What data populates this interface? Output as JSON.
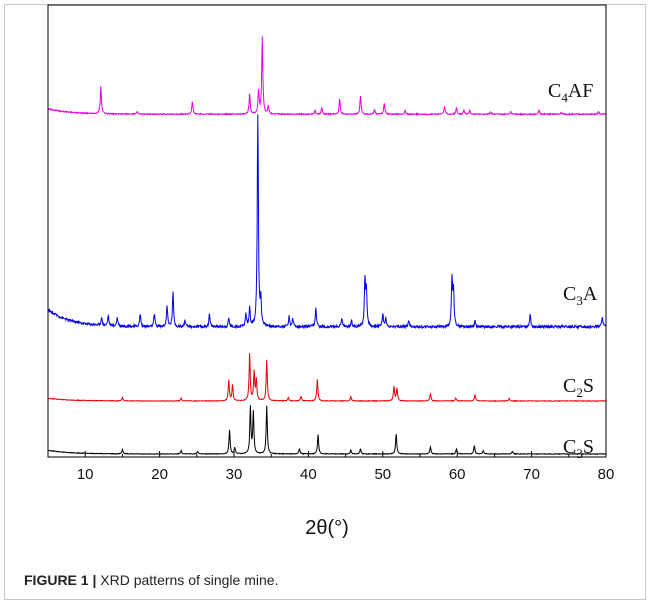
{
  "figure": {
    "caption_label": "FIGURE 1 |",
    "caption_text": " XRD patterns of single mine."
  },
  "chart_data": {
    "type": "line",
    "xlabel": "2θ(°)",
    "ylabel": "",
    "xlim": [
      5,
      80
    ],
    "xticks": [
      10,
      20,
      30,
      40,
      50,
      60,
      70,
      80
    ],
    "yaxis_ticks": false,
    "grid": false,
    "series": [
      {
        "name": "C3S",
        "label_main": "C",
        "label_sub": "3",
        "label_rest": "S",
        "color": "#000000",
        "baseline_start": 0.09,
        "baseline_end": 0.02,
        "peaks": [
          [
            15.0,
            0.08
          ],
          [
            22.9,
            0.06
          ],
          [
            25.1,
            0.05
          ],
          [
            29.4,
            0.46
          ],
          [
            30.1,
            0.12
          ],
          [
            32.2,
            0.9
          ],
          [
            32.6,
            0.8
          ],
          [
            34.4,
            0.92
          ],
          [
            38.8,
            0.1
          ],
          [
            41.3,
            0.38
          ],
          [
            45.7,
            0.07
          ],
          [
            47.0,
            0.1
          ],
          [
            51.8,
            0.38
          ],
          [
            56.4,
            0.14
          ],
          [
            59.9,
            0.1
          ],
          [
            62.3,
            0.16
          ],
          [
            63.5,
            0.06
          ],
          [
            67.4,
            0.05
          ]
        ]
      },
      {
        "name": "C2S",
        "label_main": "C",
        "label_sub": "2",
        "label_rest": "S",
        "color": "#e8000a",
        "baseline_start": 0.07,
        "baseline_end": 0.02,
        "peaks": [
          [
            15.0,
            0.06
          ],
          [
            22.9,
            0.05
          ],
          [
            29.3,
            0.4
          ],
          [
            29.8,
            0.3
          ],
          [
            32.1,
            0.9
          ],
          [
            32.7,
            0.55
          ],
          [
            33.0,
            0.4
          ],
          [
            34.4,
            0.78
          ],
          [
            37.3,
            0.06
          ],
          [
            39.0,
            0.09
          ],
          [
            41.2,
            0.42
          ],
          [
            45.7,
            0.08
          ],
          [
            51.5,
            0.28
          ],
          [
            51.9,
            0.24
          ],
          [
            56.4,
            0.14
          ],
          [
            59.8,
            0.06
          ],
          [
            62.4,
            0.12
          ],
          [
            67.0,
            0.05
          ]
        ]
      },
      {
        "name": "C3A",
        "label_main": "C",
        "label_sub": "3",
        "label_rest": "A",
        "color": "#0000e6",
        "baseline_start": 0.1,
        "baseline_end": 0.02,
        "peaks": [
          [
            12.2,
            0.04
          ],
          [
            13.1,
            0.05
          ],
          [
            14.3,
            0.04
          ],
          [
            17.4,
            0.06
          ],
          [
            19.3,
            0.06
          ],
          [
            21.0,
            0.1
          ],
          [
            21.8,
            0.16
          ],
          [
            23.4,
            0.03
          ],
          [
            26.7,
            0.06
          ],
          [
            29.3,
            0.04
          ],
          [
            31.6,
            0.06
          ],
          [
            32.1,
            0.09
          ],
          [
            33.2,
            1.0
          ],
          [
            33.6,
            0.12
          ],
          [
            37.4,
            0.05
          ],
          [
            37.9,
            0.04
          ],
          [
            41.0,
            0.09
          ],
          [
            44.5,
            0.04
          ],
          [
            45.8,
            0.03
          ],
          [
            47.6,
            0.22
          ],
          [
            47.8,
            0.17
          ],
          [
            50.0,
            0.06
          ],
          [
            50.4,
            0.04
          ],
          [
            53.5,
            0.03
          ],
          [
            59.3,
            0.22
          ],
          [
            59.5,
            0.17
          ],
          [
            62.4,
            0.03
          ],
          [
            69.8,
            0.06
          ],
          [
            79.5,
            0.05
          ]
        ]
      },
      {
        "name": "C4AF",
        "label_main": "C",
        "label_sub": "4",
        "label_rest": "AF",
        "color": "#e600e6",
        "baseline_start": 0.08,
        "baseline_end": 0.02,
        "peaks": [
          [
            12.1,
            0.3
          ],
          [
            17.0,
            0.03
          ],
          [
            24.4,
            0.14
          ],
          [
            32.1,
            0.22
          ],
          [
            33.3,
            0.26
          ],
          [
            33.8,
            0.85
          ],
          [
            34.6,
            0.09
          ],
          [
            40.9,
            0.04
          ],
          [
            41.8,
            0.07
          ],
          [
            44.2,
            0.17
          ],
          [
            47.0,
            0.2
          ],
          [
            48.9,
            0.05
          ],
          [
            50.2,
            0.12
          ],
          [
            53.0,
            0.04
          ],
          [
            58.3,
            0.09
          ],
          [
            59.9,
            0.07
          ],
          [
            60.9,
            0.04
          ],
          [
            61.7,
            0.04
          ],
          [
            64.5,
            0.03
          ],
          [
            67.2,
            0.03
          ],
          [
            71.0,
            0.04
          ],
          [
            74.0,
            0.02
          ],
          [
            79.0,
            0.03
          ]
        ]
      }
    ]
  }
}
